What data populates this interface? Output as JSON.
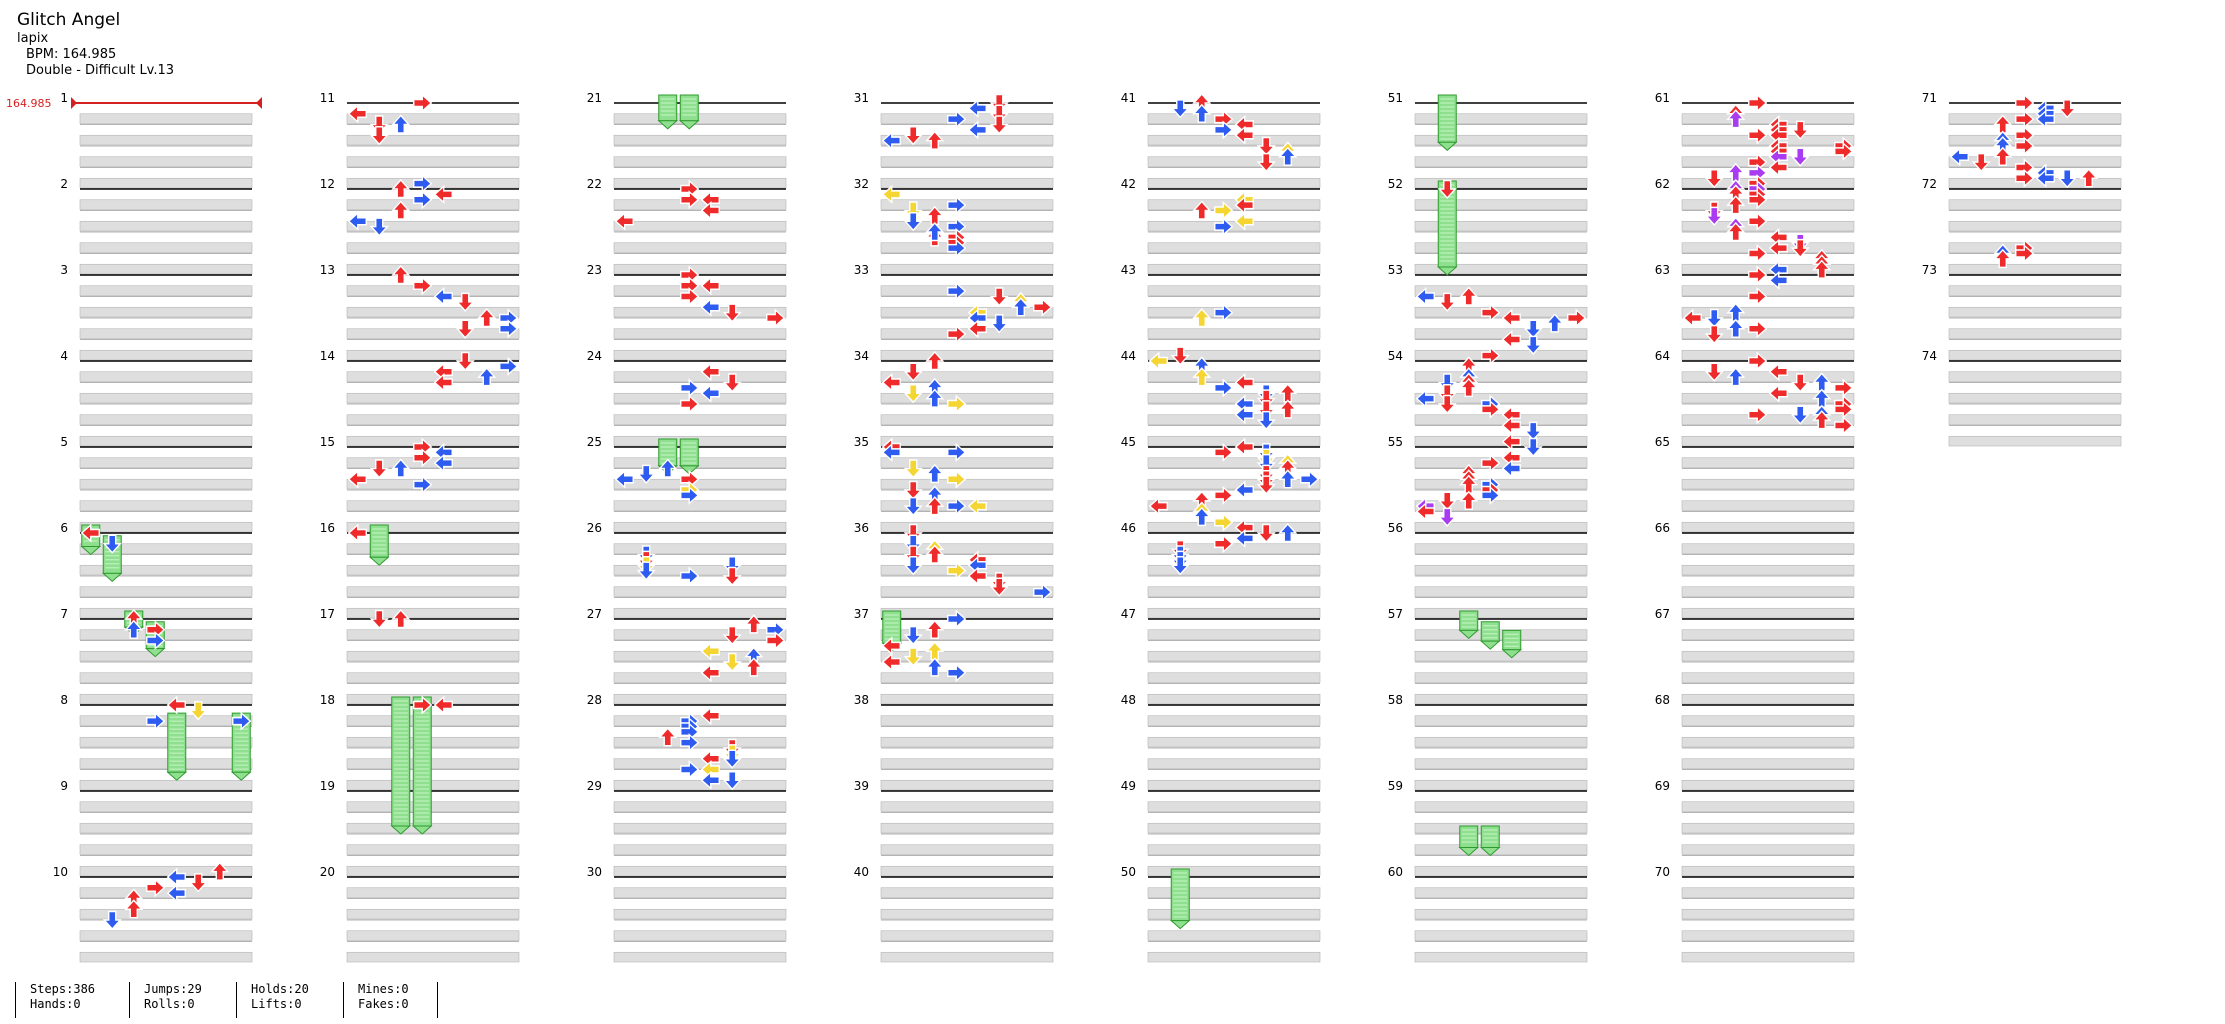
{
  "song": {
    "title": "Glitch Angel",
    "artist": "lapix",
    "bpm_label": "BPM: 164.985",
    "difficulty_label": "Double - Difficult Lv.13",
    "bpm_marker": "164.985"
  },
  "measure_numbers": [
    "1",
    "2",
    "3",
    "4",
    "5",
    "6",
    "7",
    "8",
    "9",
    "10",
    "11",
    "12",
    "13",
    "14",
    "15",
    "16",
    "17",
    "18",
    "19",
    "20",
    "21",
    "22",
    "23",
    "24",
    "25",
    "26",
    "27",
    "28",
    "29",
    "30",
    "31",
    "32",
    "33",
    "34",
    "35",
    "36",
    "37",
    "38",
    "39",
    "40",
    "41",
    "42",
    "43",
    "44",
    "45",
    "46",
    "47",
    "48",
    "49",
    "50",
    "51",
    "52",
    "53",
    "54",
    "55",
    "56",
    "57",
    "58",
    "59",
    "60",
    "61",
    "62",
    "63",
    "64",
    "65",
    "66",
    "67",
    "68",
    "69",
    "70",
    "71",
    "72",
    "73",
    "74"
  ],
  "stats": {
    "steps": "Steps:386",
    "hands": "Hands:0",
    "jumps": "Jumps:29",
    "rolls": "Rolls:0",
    "holds": "Holds:20",
    "lifts": "Lifts:0",
    "mines": "Mines:0",
    "fakes": "Fakes:0"
  },
  "colors": {
    "note_4th": "#ee2a2a",
    "note_8th": "#2f5cf0",
    "note_12th": "#a93cf0",
    "note_16th": "#f5d532",
    "hold_body": "#8ee08e",
    "hold_border": "#2f9a2f",
    "band": "#dedede",
    "bpm_marker": "#d42020"
  },
  "icons": [
    "arrow-left-icon",
    "arrow-down-icon",
    "arrow-up-icon",
    "arrow-right-icon",
    "hold-note-icon",
    "bpm-marker-icon"
  ]
}
